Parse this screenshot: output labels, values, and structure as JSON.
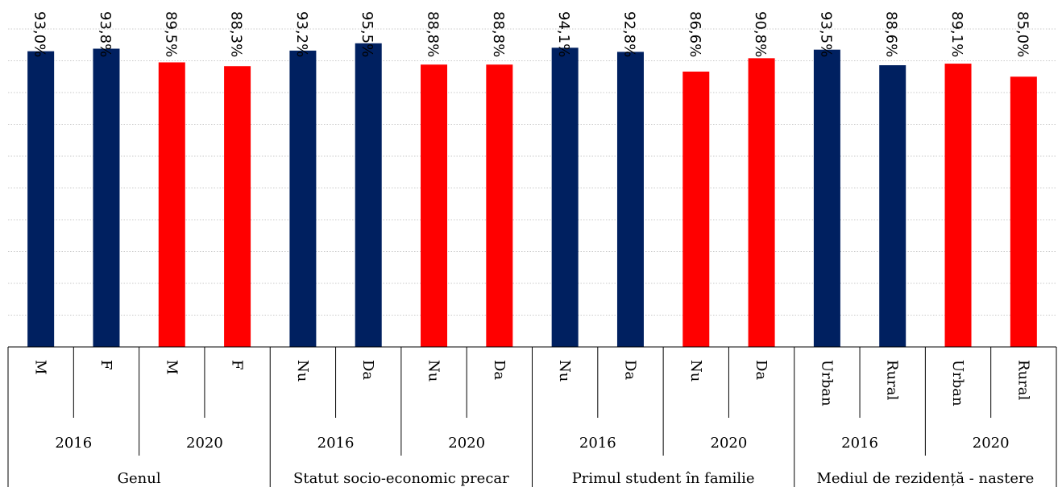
{
  "chart_data": {
    "type": "bar",
    "ylim": [
      0,
      100
    ],
    "grid": true,
    "colors": {
      "2016": "#002060",
      "2020": "#ff0000"
    },
    "groups": [
      {
        "name": "Genul",
        "years": [
          {
            "year": "2016",
            "categories": [
              "M",
              "F"
            ],
            "values": [
              93.0,
              93.8
            ],
            "labels": [
              "93,0%",
              "93,8%"
            ]
          },
          {
            "year": "2020",
            "categories": [
              "M",
              "F"
            ],
            "values": [
              89.5,
              88.3
            ],
            "labels": [
              "89,5%",
              "88,3%"
            ]
          }
        ]
      },
      {
        "name": "Statut socio-economic precar",
        "years": [
          {
            "year": "2016",
            "categories": [
              "Nu",
              "Da"
            ],
            "values": [
              93.2,
              95.5
            ],
            "labels": [
              "93,2%",
              "95,5%"
            ]
          },
          {
            "year": "2020",
            "categories": [
              "Nu",
              "Da"
            ],
            "values": [
              88.8,
              88.8
            ],
            "labels": [
              "88,8%",
              "88,8%"
            ]
          }
        ]
      },
      {
        "name": "Primul student în familie",
        "years": [
          {
            "year": "2016",
            "categories": [
              "Nu",
              "Da"
            ],
            "values": [
              94.1,
              92.8
            ],
            "labels": [
              "94,1%",
              "92,8%"
            ]
          },
          {
            "year": "2020",
            "categories": [
              "Nu",
              "Da"
            ],
            "values": [
              86.6,
              90.8
            ],
            "labels": [
              "86,6%",
              "90,8%"
            ]
          }
        ]
      },
      {
        "name": "Mediul de rezidență - nastere",
        "years": [
          {
            "year": "2016",
            "categories": [
              "Urban",
              "Rural"
            ],
            "values": [
              93.5,
              88.6
            ],
            "labels": [
              "93,5%",
              "88,6%"
            ]
          },
          {
            "year": "2020",
            "categories": [
              "Urban",
              "Rural"
            ],
            "values": [
              89.1,
              85.0
            ],
            "labels": [
              "89,1%",
              "85,0%"
            ]
          }
        ]
      }
    ]
  }
}
